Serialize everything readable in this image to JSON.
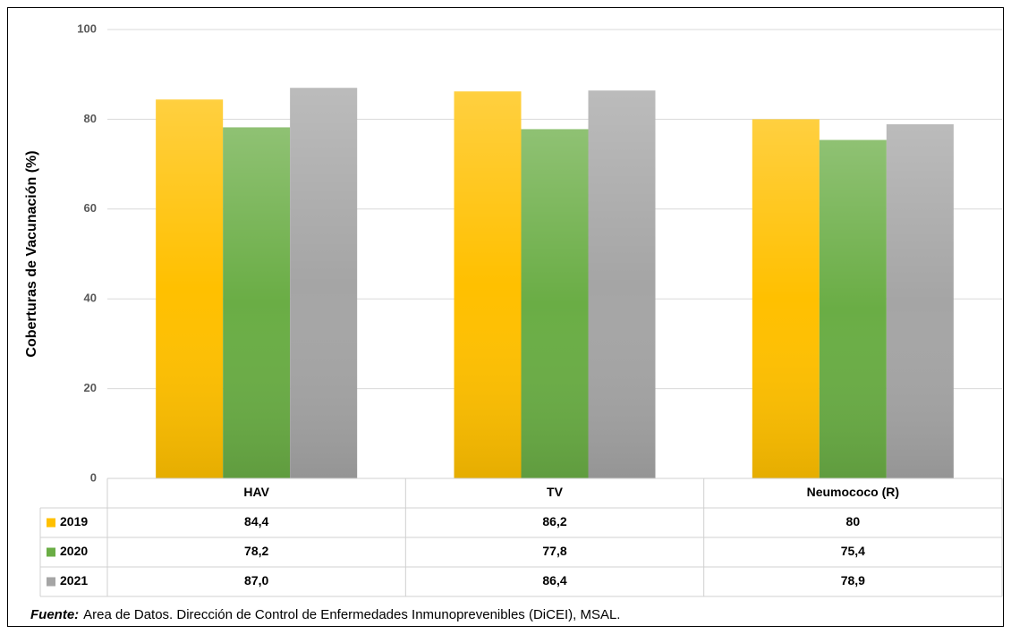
{
  "chart_data": {
    "type": "bar",
    "y_label": "Coberturas de Vacunación (%)",
    "categories": [
      "HAV",
      "TV",
      "Neumococo (R)"
    ],
    "series": [
      {
        "name": "2019",
        "color": "#ffc000",
        "values": [
          84.4,
          86.2,
          80
        ],
        "value_labels": [
          "84,4",
          "86,2",
          "80"
        ]
      },
      {
        "name": "2020",
        "color": "#6aad45",
        "values": [
          78.2,
          77.8,
          75.4
        ],
        "value_labels": [
          "78,2",
          "77,8",
          "75,4"
        ]
      },
      {
        "name": "2021",
        "color": "#a5a5a5",
        "values": [
          87.0,
          86.4,
          78.9
        ],
        "value_labels": [
          "87,0",
          "86,4",
          "78,9"
        ]
      }
    ],
    "ylim": [
      0,
      100
    ],
    "yticks": [
      0,
      20,
      40,
      60,
      80,
      100
    ],
    "grid": true,
    "source_label": "Fuente:",
    "source": "Area de Datos. Dirección de Control de Enfermedades Inmunoprevenibles (DiCEI), MSAL."
  }
}
